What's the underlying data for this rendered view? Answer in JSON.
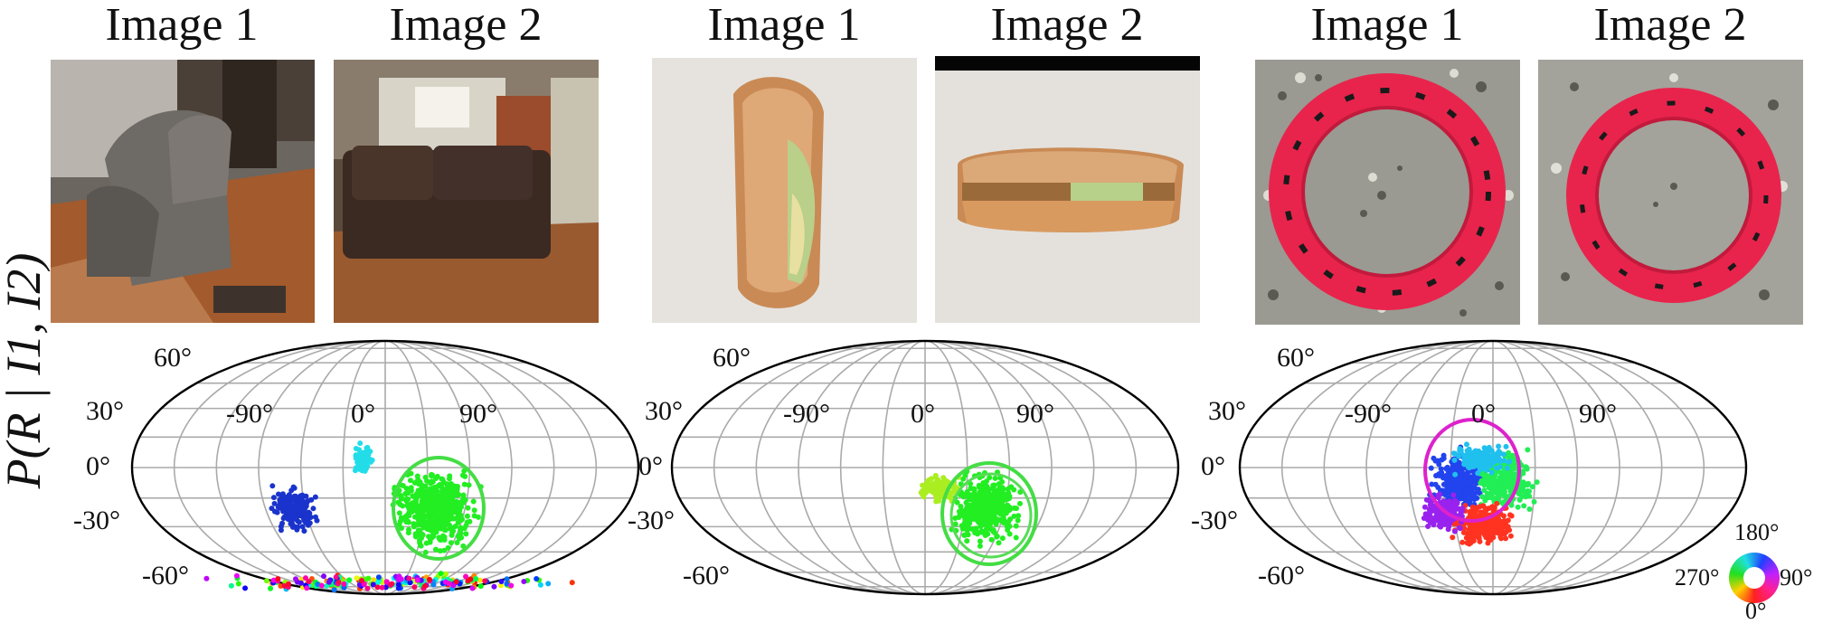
{
  "y_axis_label": "P(R | I1, I2)",
  "panels": [
    {
      "image1_label": "Image 1",
      "image2_label": "Image 2",
      "subject": "sofa"
    },
    {
      "image1_label": "Image 1",
      "image2_label": "Image 2",
      "subject": "sandwich"
    },
    {
      "image1_label": "Image 1",
      "image2_label": "Image 2",
      "subject": "ring"
    }
  ],
  "plot_labels": {
    "lat_60": "60°",
    "lat_30": "30°",
    "lat_0": "0°",
    "lat_m30": "-30°",
    "lat_m60": "-60°",
    "lon_m90": "-90°",
    "lon_0": "0°",
    "lon_90": "90°"
  },
  "color_wheel": {
    "top": "180°",
    "right": "90°",
    "bottom": "0°",
    "left": "270°"
  },
  "colors": {
    "grid": "#aaaaaa",
    "outline": "#000000",
    "green": "#22ee22",
    "magenta": "#dd22cc"
  }
}
